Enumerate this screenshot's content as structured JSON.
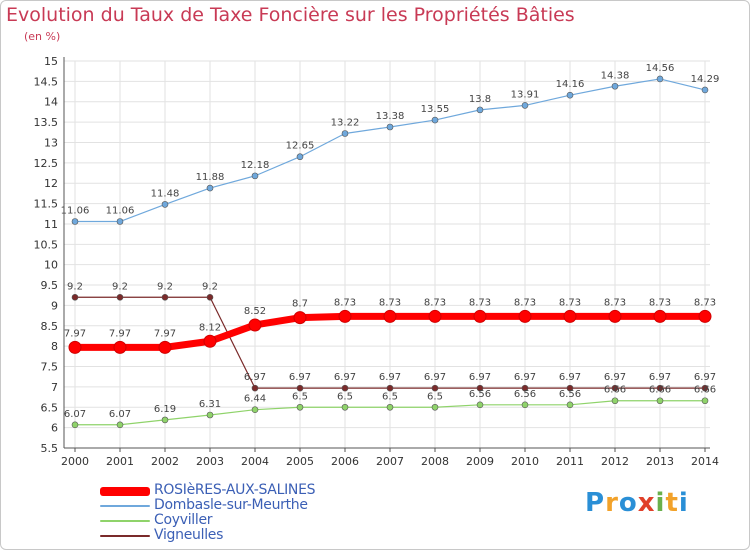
{
  "title": "Evolution du Taux de Taxe Foncière sur les Propriétés Bâties",
  "subtitle": "(en %)",
  "logo": {
    "letters": [
      "P",
      "r",
      "o",
      "x",
      "i",
      "t",
      "i"
    ],
    "colors": [
      "#2a8fd6",
      "#f2a22a",
      "#2a8fd6",
      "#e0402a",
      "#6ab04c",
      "#f2a22a",
      "#2a8fd6"
    ]
  },
  "chart_data": {
    "type": "line",
    "title": "Evolution du Taux de Taxe Foncière sur les Propriétés Bâties",
    "ylabel": "(en %)",
    "ylim": [
      5.5,
      15
    ],
    "yticks": [
      "5.5",
      "6",
      "6.5",
      "7",
      "7.5",
      "8",
      "8.5",
      "9",
      "9.5",
      "10",
      "10.5",
      "11",
      "11.5",
      "12",
      "12.5",
      "13",
      "13.5",
      "14",
      "14.5",
      "15"
    ],
    "x": [
      "2000",
      "2001",
      "2002",
      "2003",
      "2004",
      "2005",
      "2006",
      "2007",
      "2008",
      "2009",
      "2010",
      "2011",
      "2012",
      "2013",
      "2014"
    ],
    "grid": true,
    "series": [
      {
        "name": "ROSIèRES-AUX-SALINES",
        "color": "#ff0000",
        "values": [
          7.97,
          7.97,
          7.97,
          8.12,
          8.52,
          8.7,
          8.73,
          8.73,
          8.73,
          8.73,
          8.73,
          8.73,
          8.73,
          8.73,
          8.73
        ],
        "labels": [
          "7.97",
          "7.97",
          "7.97",
          "8.12",
          "8.52",
          "8.7",
          "8.73",
          "8.73",
          "8.73",
          "8.73",
          "8.73",
          "8.73",
          "8.73",
          "8.73",
          "8.73"
        ]
      },
      {
        "name": "Dombasle-sur-Meurthe",
        "color": "#6fa8dc",
        "values": [
          11.06,
          11.06,
          11.48,
          11.88,
          12.18,
          12.65,
          13.22,
          13.38,
          13.55,
          13.8,
          13.91,
          14.16,
          14.38,
          14.56,
          14.29
        ],
        "labels": [
          "11.06",
          "11.06",
          "11.48",
          "11.88",
          "12.18",
          "12.65",
          "13.22",
          "13.38",
          "13.55",
          "13.8",
          "13.91",
          "14.16",
          "14.38",
          "14.56",
          "14.29"
        ]
      },
      {
        "name": "Coyviller",
        "color": "#8fd36a",
        "values": [
          6.07,
          6.07,
          6.19,
          6.31,
          6.44,
          6.5,
          6.5,
          6.5,
          6.5,
          6.56,
          6.56,
          6.56,
          6.66,
          6.66,
          6.66
        ],
        "labels": [
          "6.07",
          "6.07",
          "6.19",
          "6.31",
          "6.44",
          "6.5",
          "6.5",
          "6.5",
          "6.5",
          "6.56",
          "6.56",
          "6.56",
          "6.66",
          "6.66",
          "6.66"
        ]
      },
      {
        "name": "Vigneulles",
        "color": "#7a2a2a",
        "values": [
          9.2,
          9.2,
          9.2,
          9.2,
          6.97,
          6.97,
          6.97,
          6.97,
          6.97,
          6.97,
          6.97,
          6.97,
          6.97,
          6.97,
          6.97
        ],
        "labels": [
          "9.2",
          "9.2",
          "9.2",
          "9.2",
          "6.97",
          "6.97",
          "6.97",
          "6.97",
          "6.97",
          "6.97",
          "6.97",
          "6.97",
          "6.97",
          "6.97",
          "6.97"
        ]
      }
    ]
  }
}
